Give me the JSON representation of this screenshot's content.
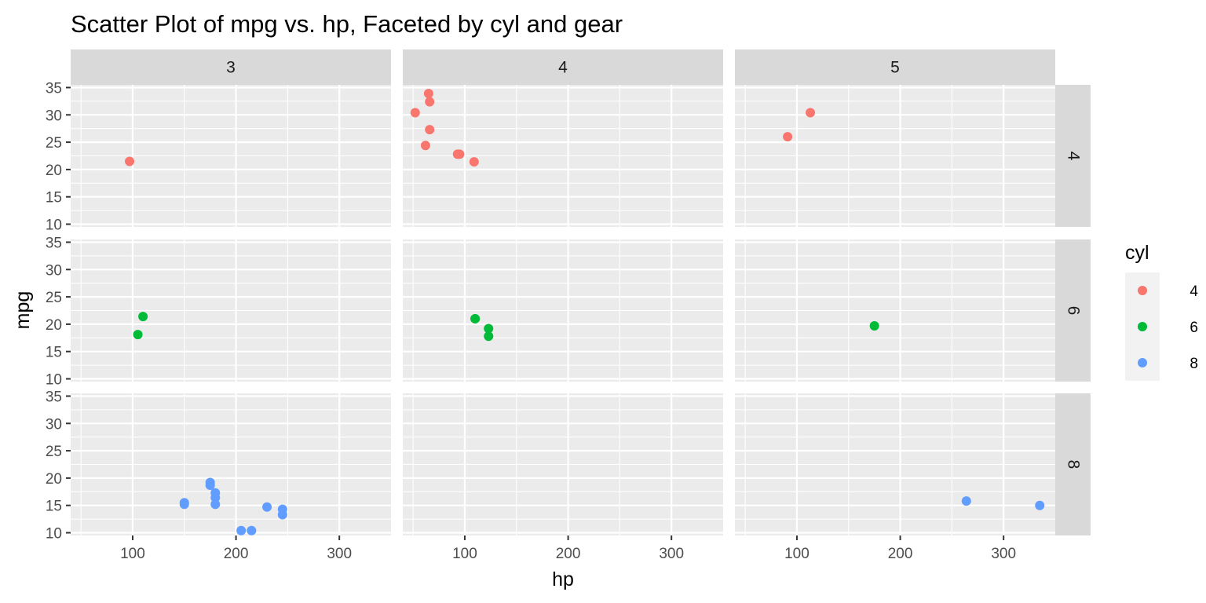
{
  "chart_data": {
    "type": "scatter",
    "title": "Scatter Plot of mpg vs. hp, Faceted by cyl and gear",
    "xlabel": "hp",
    "ylabel": "mpg",
    "xlim": [
      40,
      350
    ],
    "ylim": [
      9.5,
      35.5
    ],
    "x_ticks": [
      100,
      200,
      300
    ],
    "y_ticks": [
      10,
      15,
      20,
      25,
      30,
      35
    ],
    "grid": true,
    "facet_cols": {
      "variable": "gear",
      "levels": [
        "3",
        "4",
        "5"
      ]
    },
    "facet_rows": {
      "variable": "cyl",
      "levels": [
        "4",
        "6",
        "8"
      ]
    },
    "legend": {
      "title": "cyl",
      "position": "right",
      "entries": [
        {
          "label": "4",
          "color": "#F8766D"
        },
        {
          "label": "6",
          "color": "#00BA38"
        },
        {
          "label": "8",
          "color": "#619CFF"
        }
      ]
    },
    "panels": [
      {
        "cyl": "4",
        "gear": "3",
        "points": [
          {
            "x": 97,
            "y": 21.5
          }
        ]
      },
      {
        "cyl": "4",
        "gear": "4",
        "points": [
          {
            "x": 93,
            "y": 22.8
          },
          {
            "x": 62,
            "y": 24.4
          },
          {
            "x": 95,
            "y": 22.8
          },
          {
            "x": 66,
            "y": 32.4
          },
          {
            "x": 52,
            "y": 30.4
          },
          {
            "x": 65,
            "y": 33.9
          },
          {
            "x": 66,
            "y": 27.3
          },
          {
            "x": 109,
            "y": 21.4
          }
        ]
      },
      {
        "cyl": "4",
        "gear": "5",
        "points": [
          {
            "x": 91,
            "y": 26.0
          },
          {
            "x": 113,
            "y": 30.4
          }
        ]
      },
      {
        "cyl": "6",
        "gear": "3",
        "points": [
          {
            "x": 110,
            "y": 21.4
          },
          {
            "x": 105,
            "y": 18.1
          }
        ]
      },
      {
        "cyl": "6",
        "gear": "4",
        "points": [
          {
            "x": 110,
            "y": 21.0
          },
          {
            "x": 110,
            "y": 21.0
          },
          {
            "x": 123,
            "y": 19.2
          },
          {
            "x": 123,
            "y": 17.8
          }
        ]
      },
      {
        "cyl": "6",
        "gear": "5",
        "points": [
          {
            "x": 175,
            "y": 19.7
          }
        ]
      },
      {
        "cyl": "8",
        "gear": "3",
        "points": [
          {
            "x": 175,
            "y": 18.7
          },
          {
            "x": 245,
            "y": 14.3
          },
          {
            "x": 180,
            "y": 16.4
          },
          {
            "x": 180,
            "y": 17.3
          },
          {
            "x": 180,
            "y": 15.2
          },
          {
            "x": 205,
            "y": 10.4
          },
          {
            "x": 215,
            "y": 10.4
          },
          {
            "x": 230,
            "y": 14.7
          },
          {
            "x": 150,
            "y": 15.5
          },
          {
            "x": 150,
            "y": 15.2
          },
          {
            "x": 245,
            "y": 13.3
          },
          {
            "x": 175,
            "y": 19.2
          }
        ]
      },
      {
        "cyl": "8",
        "gear": "4",
        "points": []
      },
      {
        "cyl": "8",
        "gear": "5",
        "points": [
          {
            "x": 264,
            "y": 15.8
          },
          {
            "x": 335,
            "y": 15.0
          }
        ]
      }
    ]
  }
}
